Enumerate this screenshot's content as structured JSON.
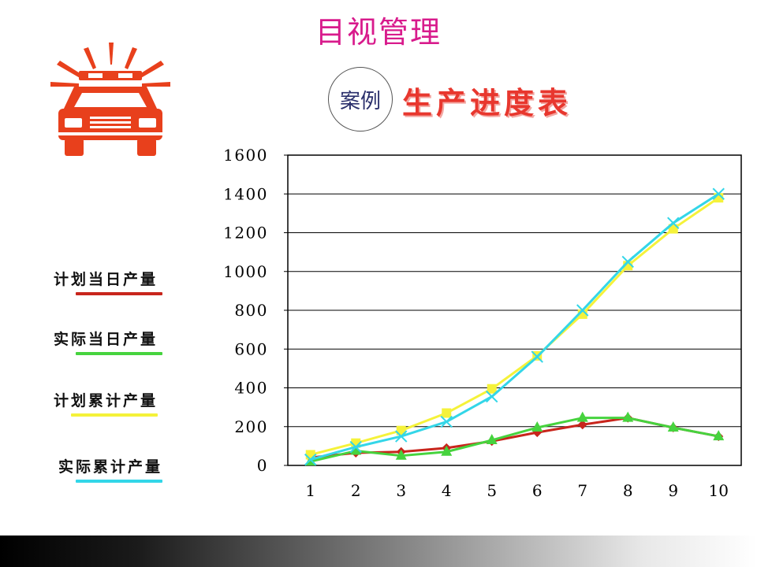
{
  "title": "目视管理",
  "badge": "案例",
  "subtitle": "生产进度表",
  "icon": "police-car-icon",
  "legend": [
    {
      "label": "计划当日产量",
      "color": "#c8251c"
    },
    {
      "label": "实际当日产量",
      "color": "#46d33e"
    },
    {
      "label": "计划累计产量",
      "color": "#f5f23a"
    },
    {
      "label": "实际累计产量",
      "color": "#33d6e8"
    }
  ],
  "chart_data": {
    "type": "line",
    "categories": [
      "1",
      "2",
      "3",
      "4",
      "5",
      "6",
      "7",
      "8",
      "9",
      "10"
    ],
    "ylim": [
      0,
      1600
    ],
    "yticks": [
      "0",
      "200",
      "400",
      "600",
      "800",
      "1000",
      "1200",
      "1400",
      "1600"
    ],
    "grid": true,
    "legend_position": "left",
    "series": [
      {
        "name": "计划当日产量",
        "color": "#c8251c",
        "marker": "diamond",
        "values": [
          40,
          65,
          70,
          90,
          125,
          170,
          210,
          245,
          195,
          150
        ]
      },
      {
        "name": "实际当日产量",
        "color": "#46d33e",
        "marker": "triangle",
        "values": [
          20,
          75,
          50,
          70,
          130,
          195,
          245,
          245,
          195,
          150
        ]
      },
      {
        "name": "计划累计产量",
        "color": "#f5f23a",
        "marker": "square",
        "values": [
          55,
          115,
          180,
          270,
          395,
          565,
          780,
          1030,
          1220,
          1380
        ]
      },
      {
        "name": "实际累计产量",
        "color": "#33d6e8",
        "marker": "x",
        "values": [
          30,
          95,
          150,
          225,
          355,
          560,
          800,
          1050,
          1250,
          1400
        ]
      }
    ]
  }
}
